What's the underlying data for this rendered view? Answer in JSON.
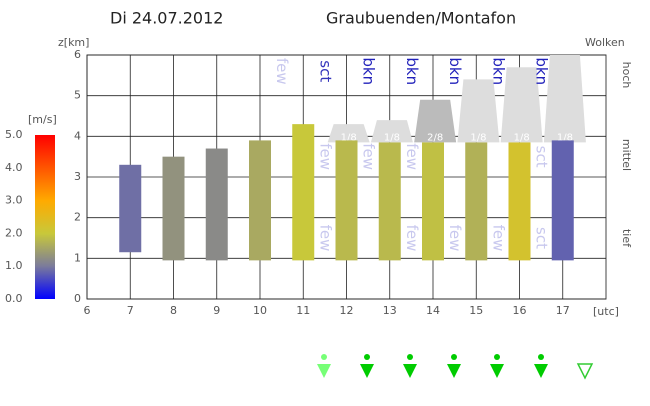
{
  "chart_data": {
    "type": "range-bar",
    "title": "Di 24.07.2012",
    "subtitle": "Graubuenden/Montafon",
    "y_label": "z[km]",
    "x_label": "[utc]",
    "colorbar_label": "[m/s]",
    "right_label": "Wolken",
    "cloud_levels": [
      "hoch",
      "mittel",
      "tief"
    ],
    "xlim": [
      6,
      18
    ],
    "ylim": [
      0,
      6
    ],
    "xticks": [
      6,
      7,
      8,
      9,
      10,
      11,
      12,
      13,
      14,
      15,
      16,
      17
    ],
    "yticks": [
      0,
      1,
      2,
      3,
      4,
      5,
      6
    ],
    "grid": true,
    "x": [
      7,
      8,
      9,
      10,
      11,
      12,
      13,
      14,
      15,
      16,
      17
    ],
    "bottom": [
      1.15,
      0.95,
      0.95,
      0.95,
      0.95,
      0.95,
      0.95,
      0.95,
      0.95,
      0.95,
      0.95
    ],
    "top": [
      3.3,
      3.5,
      3.7,
      3.9,
      4.3,
      3.9,
      3.85,
      3.85,
      3.85,
      3.85,
      3.9
    ],
    "wind": [
      0.9,
      1.3,
      1.2,
      1.6,
      2.0,
      1.8,
      1.8,
      1.9,
      1.7,
      2.2,
      0.8
    ],
    "colorbar": {
      "clim": [
        0,
        5
      ],
      "colors": [
        "#0000ff",
        "#7b7b9b",
        "#c8c83a",
        "#ffaa00",
        "#ff5500",
        "#ff0000"
      ],
      "ticks": [
        {
          "value": 0,
          "label": "0.0"
        },
        {
          "value": 1,
          "label": "1.0"
        },
        {
          "value": 2,
          "label": "2.0"
        },
        {
          "value": 3,
          "label": "3.0"
        },
        {
          "value": 4,
          "label": "4.0"
        },
        {
          "value": 5,
          "label": "5.0"
        }
      ]
    },
    "cloud_texts": [
      {
        "x": 10,
        "y": 5.6,
        "text": "few",
        "color": "#c8c8ee"
      },
      {
        "x": 11,
        "y": 5.6,
        "text": "sct",
        "color": "#3333bb"
      },
      {
        "x": 12,
        "y": 5.6,
        "text": "bkn",
        "color": "#2222bb"
      },
      {
        "x": 13,
        "y": 5.6,
        "text": "bkn",
        "color": "#2222bb"
      },
      {
        "x": 14,
        "y": 5.6,
        "text": "bkn",
        "color": "#2222bb"
      },
      {
        "x": 15,
        "y": 5.6,
        "text": "bkn",
        "color": "#2222bb"
      },
      {
        "x": 16,
        "y": 5.6,
        "text": "bkn",
        "color": "#2222bb"
      },
      {
        "x": 11,
        "y": 3.5,
        "text": "few",
        "color": "#c8c8ee"
      },
      {
        "x": 12,
        "y": 3.5,
        "text": "few",
        "color": "#c8c8ee"
      },
      {
        "x": 13,
        "y": 3.5,
        "text": "few",
        "color": "#c8c8ee"
      },
      {
        "x": 16,
        "y": 3.5,
        "text": "sct",
        "color": "#c8c8ee"
      },
      {
        "x": 11,
        "y": 1.5,
        "text": "few",
        "color": "#c8c8ee"
      },
      {
        "x": 13,
        "y": 1.5,
        "text": "few",
        "color": "#c8c8ee"
      },
      {
        "x": 14,
        "y": 1.5,
        "text": "few",
        "color": "#c8c8ee"
      },
      {
        "x": 15,
        "y": 1.5,
        "text": "few",
        "color": "#c8c8ee"
      },
      {
        "x": 16,
        "y": 1.5,
        "text": "sct",
        "color": "#c8c8ee"
      }
    ],
    "clouds": [
      {
        "x": 12,
        "base": 3.85,
        "top": 4.3,
        "label": "1/8",
        "color": "#dddddd"
      },
      {
        "x": 13,
        "base": 3.85,
        "top": 4.4,
        "label": "1/8",
        "color": "#dddddd"
      },
      {
        "x": 14,
        "base": 3.85,
        "top": 4.9,
        "label": "2/8",
        "color": "#bbbbbb"
      },
      {
        "x": 15,
        "base": 3.85,
        "top": 5.4,
        "label": "1/8",
        "color": "#dddddd"
      },
      {
        "x": 16,
        "base": 3.85,
        "top": 5.7,
        "label": "1/8",
        "color": "#dddddd"
      },
      {
        "x": 17,
        "base": 3.85,
        "top": 6.0,
        "label": "1/8",
        "color": "#dddddd"
      }
    ]
  }
}
